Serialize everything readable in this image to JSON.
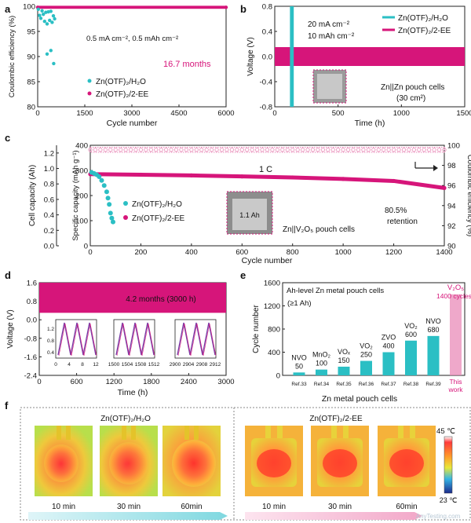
{
  "colors": {
    "cyan": "#2bbfc4",
    "magenta": "#d6157a",
    "pink_light": "#e98bb8",
    "grad_cyan": "#7fd8e0",
    "grad_pink": "#f2a7c8"
  },
  "chart_data": [
    {
      "panel": "a",
      "type": "scatter",
      "xlabel": "Cycle number",
      "ylabel": "Coulombic efficiency (%)",
      "xlim": [
        0,
        6000
      ],
      "ylim": [
        80,
        100
      ],
      "xticks": [
        "0",
        "1500",
        "3000",
        "4500",
        "6000"
      ],
      "yticks": [
        "80",
        "85",
        "90",
        "95",
        "100"
      ],
      "annotation": "0.5 mA cm⁻², 0.5 mAh cm⁻²",
      "highlight": "16.7 months",
      "legend": [
        "Zn(OTF)₂/H₂O",
        "Zn(OTF)₂/2-EE"
      ],
      "series": [
        {
          "name": "Zn(OTF)₂/H₂O",
          "x": [
            20,
            60,
            100,
            140,
            180,
            220,
            260,
            300,
            340,
            380,
            420,
            460,
            500,
            540,
            300,
            420,
            510
          ],
          "y": [
            99.4,
            98.2,
            97.6,
            99.1,
            98.4,
            97.0,
            98.8,
            96.5,
            98.9,
            97.2,
            99.0,
            96.8,
            98.1,
            97.5,
            90.5,
            91.2,
            88.6
          ]
        },
        {
          "name": "Zn(OTF)₂/2-EE",
          "x": [
            0,
            6000
          ],
          "y": [
            99.8,
            99.8
          ]
        }
      ]
    },
    {
      "panel": "b",
      "type": "line",
      "xlabel": "Time (h)",
      "ylabel": "Voltage (V)",
      "xlim": [
        0,
        1500
      ],
      "ylim": [
        -0.8,
        0.8
      ],
      "xticks": [
        "0",
        "500",
        "1000",
        "1500"
      ],
      "yticks": [
        "-0.8",
        "-0.4",
        "0.0",
        "0.4",
        "0.8"
      ],
      "annotation1": "20 mA cm⁻²",
      "annotation2": "10 mAh cm⁻²",
      "cell_label": "Zn||Zn pouch cells",
      "cell_area": "(30 cm²)",
      "legend": [
        "Zn(OTF)₂/H₂O",
        "Zn(OTF)₂/2-EE"
      ],
      "series": [
        {
          "name": "Zn(OTF)₂/H₂O",
          "x": [
            0,
            150
          ],
          "y_range": [
            -0.8,
            0.8
          ]
        },
        {
          "name": "Zn(OTF)₂/2-EE",
          "x": [
            0,
            1500
          ],
          "y_range": [
            -0.15,
            0.15
          ]
        }
      ]
    },
    {
      "panel": "c",
      "type": "scatter",
      "xlabel": "Cycle number",
      "ylabel_left": "Specific capacity (mAh g⁻¹)",
      "ylabel_left2": "Cell capacity (Ah)",
      "ylabel_right": "Coulombic efficiency (%)",
      "xlim": [
        0,
        1400
      ],
      "ylim": [
        0,
        400
      ],
      "y2lim": [
        90,
        100
      ],
      "xticks": [
        "0",
        "200",
        "400",
        "600",
        "800",
        "1000",
        "1200",
        "1400"
      ],
      "yticks": [
        "0",
        "100",
        "200",
        "300",
        "400"
      ],
      "yticks_cell": [
        "0.0",
        "0.2",
        "0.4",
        "0.6",
        "0.8",
        "1.0",
        "1.2"
      ],
      "yticks_right": [
        "90",
        "92",
        "94",
        "96",
        "98",
        "100"
      ],
      "rate": "1 C",
      "inset_label": "1.1 Ah",
      "cell_label": "Zn||V₂O₅ pouch cells",
      "retention_value": "80.5%",
      "retention_word": "retention",
      "legend": [
        "Zn(OTF)₂/H₂O",
        "Zn(OTF)₂/2-EE"
      ],
      "series": [
        {
          "name": "Zn(OTF)₂/H₂O",
          "x": [
            5,
            15,
            25,
            35,
            45,
            55,
            65,
            70,
            75,
            80,
            85,
            90
          ],
          "y": [
            292,
            288,
            283,
            275,
            260,
            240,
            215,
            190,
            165,
            130,
            110,
            95
          ]
        },
        {
          "name": "Zn(OTF)₂/2-EE",
          "x": [
            0,
            200,
            400,
            600,
            800,
            1000,
            1200,
            1400
          ],
          "y": [
            285,
            283,
            280,
            276,
            272,
            266,
            258,
            230
          ]
        },
        {
          "name": "CE 2-EE",
          "x": [
            0,
            1400
          ],
          "y": [
            99.6,
            99.6
          ]
        }
      ]
    },
    {
      "panel": "d",
      "type": "line",
      "xlabel": "Time (h)",
      "ylabel": "Voltage (V)",
      "xlim": [
        0,
        3000
      ],
      "ylim": [
        -2.4,
        1.6
      ],
      "xticks": [
        "0",
        "600",
        "1200",
        "1800",
        "2400",
        "3000"
      ],
      "yticks": [
        "-2.4",
        "-1.6",
        "-0.8",
        "0.0",
        "0.8",
        "1.6"
      ],
      "annotation": "4.2 months (3000 h)",
      "insets": [
        {
          "xticks": [
            "0",
            "4",
            "8",
            "12"
          ],
          "yticks": [
            "0.4",
            "0.8",
            "1.2"
          ]
        },
        {
          "xticks": [
            "1500",
            "1504",
            "1508",
            "1512"
          ]
        },
        {
          "xticks": [
            "2900",
            "2904",
            "2908",
            "2912"
          ]
        }
      ],
      "series": [
        {
          "name": "voltage",
          "x": [
            0,
            3000
          ],
          "y_range": [
            0.3,
            1.6
          ]
        }
      ]
    },
    {
      "panel": "e",
      "type": "bar",
      "title": "Ah-level Zn metal pouch cells",
      "subtitle": "(≥1 Ah)",
      "xlabel": "Zn metal pouch cells",
      "ylabel": "Cycle number",
      "ylim": [
        0,
        1600
      ],
      "yticks": [
        "0",
        "400",
        "800",
        "1200",
        "1600"
      ],
      "categories": [
        "Ref.33",
        "Ref.34",
        "Ref.35",
        "Ref.36",
        "Ref.37",
        "Ref.38",
        "Ref.39",
        "This work"
      ],
      "materials": [
        "NVO",
        "MnO₂",
        "VOₓ",
        "VO₂",
        "ZVO",
        "VO₂",
        "NVO",
        "V₂O₅"
      ],
      "values": [
        50,
        100,
        150,
        250,
        400,
        600,
        680,
        1400
      ],
      "value_labels": [
        "50",
        "100",
        "150",
        "250",
        "400",
        "600",
        "680",
        "1400 cycles"
      ]
    }
  ],
  "panel_f": {
    "left_title": "Zn(OTF)₂/H₂O",
    "right_title": "Zn(OTF)₂/2-EE",
    "left_times": [
      "10 min",
      "30 min",
      "60min"
    ],
    "right_times": [
      "10 min",
      "30 min",
      "60min"
    ],
    "scale_max": "45 ℃",
    "scale_min": "23 ℃"
  },
  "panel_labels": [
    "a",
    "b",
    "c",
    "d",
    "e",
    "f"
  ],
  "watermark_text": "AnyTesting.com"
}
